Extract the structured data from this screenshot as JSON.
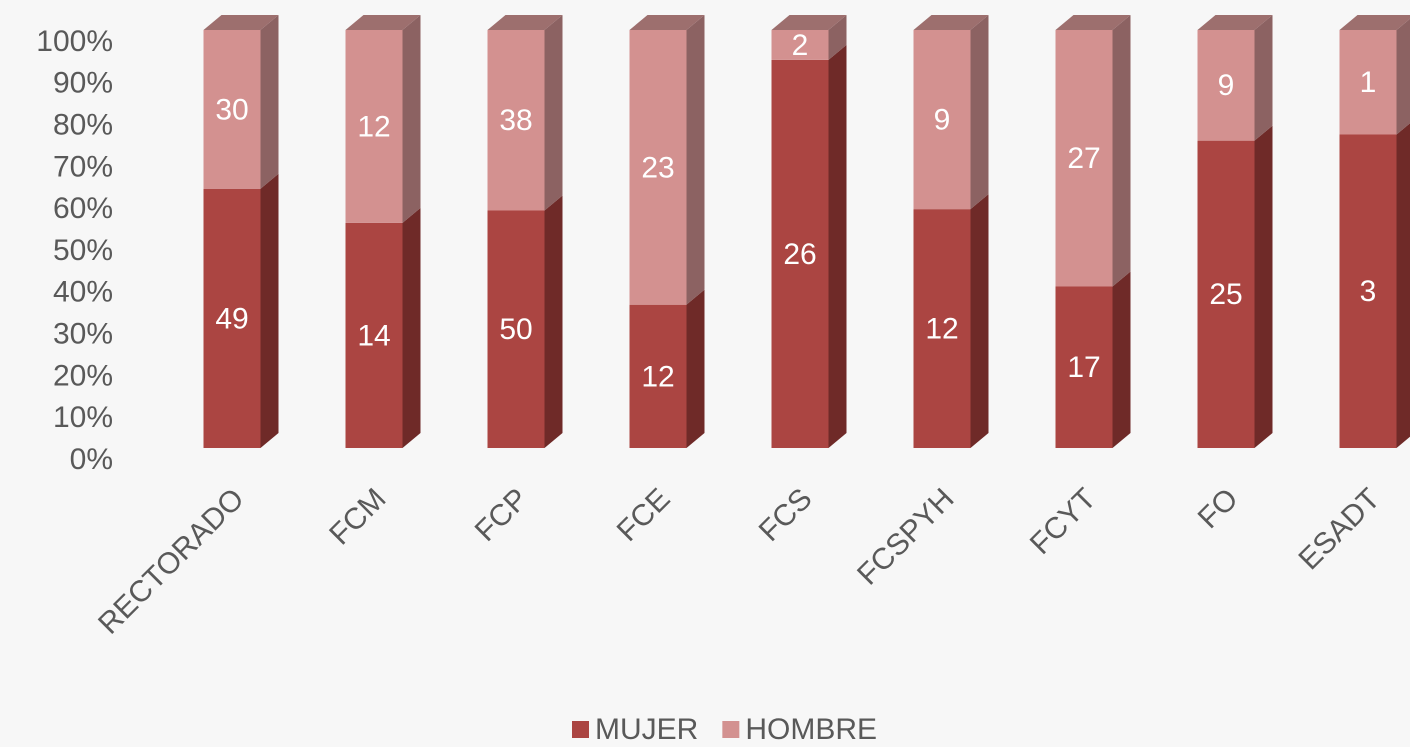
{
  "chart_data": {
    "type": "bar",
    "stacking": "percent",
    "depth3d": true,
    "categories": [
      "RECTORADO",
      "FCM",
      "FCP",
      "FCE",
      "FCS",
      "FCSPYH",
      "FCYT",
      "FO",
      "ESADT"
    ],
    "series": [
      {
        "name": "MUJER",
        "color": "#ab4542",
        "side_color": "#6f2a28",
        "top_color": "#8a3533",
        "values": [
          49,
          14,
          50,
          12,
          26,
          12,
          17,
          25,
          3
        ]
      },
      {
        "name": "HOMBRE",
        "color": "#d39190",
        "side_color": "#8c6262",
        "top_color": "#9d6f6e",
        "values": [
          30,
          12,
          38,
          23,
          2,
          9,
          27,
          9,
          1
        ]
      }
    ],
    "ylim": [
      0,
      100
    ],
    "yticks": [
      {
        "value": 0,
        "label": "0%"
      },
      {
        "value": 10,
        "label": "10%"
      },
      {
        "value": 20,
        "label": "20%"
      },
      {
        "value": 30,
        "label": "30%"
      },
      {
        "value": 40,
        "label": "40%"
      },
      {
        "value": 50,
        "label": "50%"
      },
      {
        "value": 60,
        "label": "60%"
      },
      {
        "value": 70,
        "label": "70%"
      },
      {
        "value": 80,
        "label": "80%"
      },
      {
        "value": 90,
        "label": "90%"
      },
      {
        "value": 100,
        "label": "100%"
      }
    ],
    "legend": "bottom"
  }
}
